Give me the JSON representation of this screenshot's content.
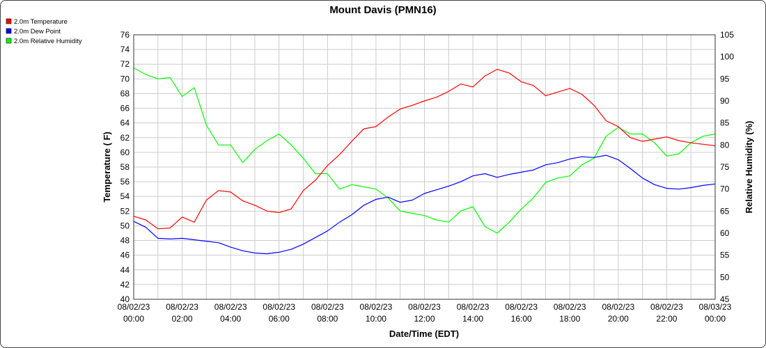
{
  "chart_data": {
    "type": "line",
    "title": "Mount Davis (PMN16)",
    "xlabel": "Date/Time (EDT)",
    "ylabel": "Temperature ( F)",
    "ylabel_right": "Relative Humidity (%)",
    "x_ticks": [
      {
        "date": "08/02/23",
        "time": "00:00"
      },
      {
        "date": "08/02/23",
        "time": "02:00"
      },
      {
        "date": "08/02/23",
        "time": "04:00"
      },
      {
        "date": "08/02/23",
        "time": "06:00"
      },
      {
        "date": "08/02/23",
        "time": "08:00"
      },
      {
        "date": "08/02/23",
        "time": "10:00"
      },
      {
        "date": "08/02/23",
        "time": "12:00"
      },
      {
        "date": "08/02/23",
        "time": "14:00"
      },
      {
        "date": "08/02/23",
        "time": "16:00"
      },
      {
        "date": "08/02/23",
        "time": "18:00"
      },
      {
        "date": "08/02/23",
        "time": "20:00"
      },
      {
        "date": "08/02/23",
        "time": "22:00"
      },
      {
        "date": "08/03/23",
        "time": "00:00"
      }
    ],
    "y_ticks": [
      "76",
      "74",
      "72",
      "70",
      "68",
      "66",
      "64",
      "62",
      "60",
      "58",
      "56",
      "54",
      "52",
      "50",
      "48",
      "46",
      "44",
      "42",
      "40"
    ],
    "y2_ticks": [
      "105",
      "100",
      "95",
      "90",
      "85",
      "80",
      "75",
      "70",
      "65",
      "60",
      "55",
      "50",
      "45"
    ],
    "ylim": [
      40,
      76
    ],
    "y2lim": [
      45,
      105
    ],
    "xlim_hours": [
      0,
      24
    ],
    "grid": true,
    "legend_position": "top-left, outside plot",
    "x_hours": [
      0,
      0.5,
      1,
      1.5,
      2,
      2.5,
      3,
      3.5,
      4,
      4.5,
      5,
      5.5,
      6,
      6.5,
      7,
      7.5,
      8,
      8.5,
      9,
      9.5,
      10,
      10.5,
      11,
      11.5,
      12,
      12.5,
      13,
      13.5,
      14,
      14.5,
      15,
      15.5,
      16,
      16.5,
      17,
      17.5,
      18,
      18.5,
      19,
      19.5,
      20,
      20.5,
      21,
      21.5,
      22,
      22.5,
      23,
      23.5,
      24
    ],
    "series": [
      {
        "name": "2.0m Temperature",
        "color": "#ff0000",
        "axis": "left",
        "values": [
          51.3,
          50.8,
          49.6,
          49.7,
          51.2,
          50.5,
          53.5,
          54.8,
          54.6,
          53.4,
          52.8,
          52.0,
          51.8,
          52.3,
          54.8,
          56.2,
          58.2,
          59.7,
          61.5,
          63.2,
          63.5,
          64.8,
          65.9,
          66.4,
          67.0,
          67.5,
          68.3,
          69.3,
          68.9,
          70.4,
          71.3,
          70.8,
          69.6,
          69.1,
          67.7,
          68.2,
          68.7,
          67.9,
          66.4,
          64.3,
          63.5,
          62.0,
          61.5,
          61.8,
          62.1,
          61.6,
          61.3,
          61.1,
          60.9
        ]
      },
      {
        "name": "2.0m Dew Point",
        "color": "#0000ff",
        "axis": "left",
        "values": [
          50.6,
          49.8,
          48.3,
          48.2,
          48.3,
          48.1,
          47.9,
          47.7,
          47.1,
          46.6,
          46.3,
          46.2,
          46.4,
          46.8,
          47.5,
          48.4,
          49.3,
          50.5,
          51.5,
          52.8,
          53.6,
          53.9,
          53.2,
          53.5,
          54.4,
          54.9,
          55.4,
          56.0,
          56.8,
          57.1,
          56.6,
          57.0,
          57.3,
          57.6,
          58.3,
          58.6,
          59.1,
          59.4,
          59.3,
          59.6,
          59.0,
          57.8,
          56.5,
          55.6,
          55.1,
          55.0,
          55.2,
          55.5,
          55.7
        ]
      },
      {
        "name": "2.0m Relative Humidity",
        "color": "#00ff00",
        "axis": "right",
        "values": [
          97.5,
          96.0,
          95.0,
          95.3,
          91.0,
          93.0,
          84.5,
          80.0,
          80.0,
          76.0,
          79.0,
          81.0,
          82.5,
          80.0,
          77.0,
          73.5,
          73.5,
          70.0,
          71.0,
          70.5,
          70.0,
          68.0,
          65.0,
          64.5,
          64.0,
          63.0,
          62.5,
          65.0,
          66.0,
          61.5,
          60.0,
          62.5,
          65.5,
          68.0,
          71.5,
          72.5,
          73.0,
          75.5,
          77.0,
          82.0,
          84.0,
          82.5,
          82.5,
          80.5,
          77.5,
          78.0,
          80.5,
          82.0,
          82.5
        ]
      }
    ]
  }
}
